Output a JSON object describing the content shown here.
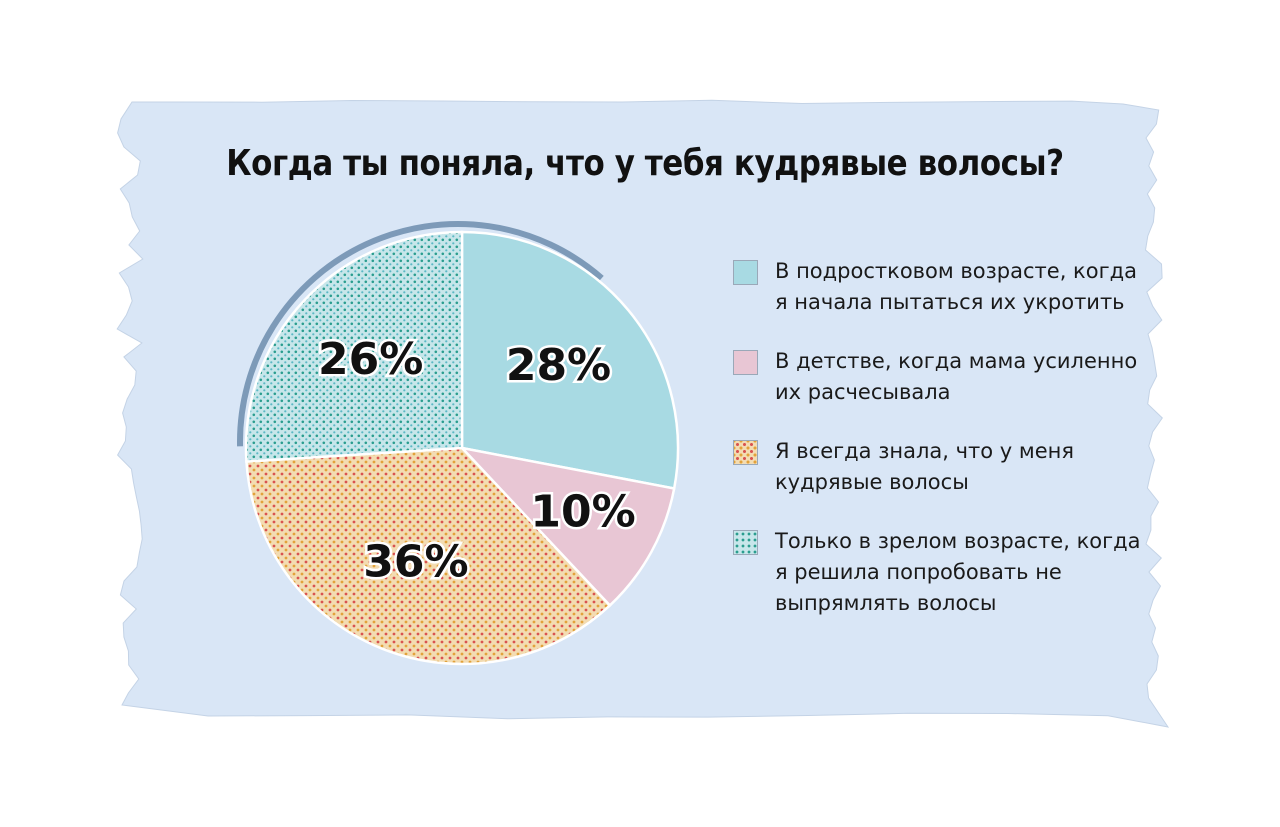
{
  "chart_data": {
    "type": "pie",
    "title": "Когда ты поняла, что у тебя кудрявые волосы?",
    "categories": [
      "В подростковом возрасте, когда\nя начала пытаться их укротить",
      "В детстве, когда мама усиленно\nих расчесывала",
      "Я всегда знала, что у меня\nкудрявые волосы",
      "Только в зрелом возрасте, когда\nя решила попробовать не\nвыпрямлять волосы"
    ],
    "values": [
      28,
      10,
      36,
      26
    ],
    "value_labels": [
      "28%",
      "10%",
      "36%",
      "26%"
    ],
    "start": "12 o'clock",
    "direction": "clockwise",
    "legend_position": "right",
    "colors": {
      "teen": "#a8dae3",
      "childhood": "#e8c6d4",
      "always": "#f0d7ad",
      "mature": "#bfe0e4",
      "paper": "#d9e6f6",
      "rim": "#7d9ab8"
    },
    "patterns": [
      "solid",
      "solid",
      "dots-red-orange",
      "dots-teal"
    ]
  }
}
